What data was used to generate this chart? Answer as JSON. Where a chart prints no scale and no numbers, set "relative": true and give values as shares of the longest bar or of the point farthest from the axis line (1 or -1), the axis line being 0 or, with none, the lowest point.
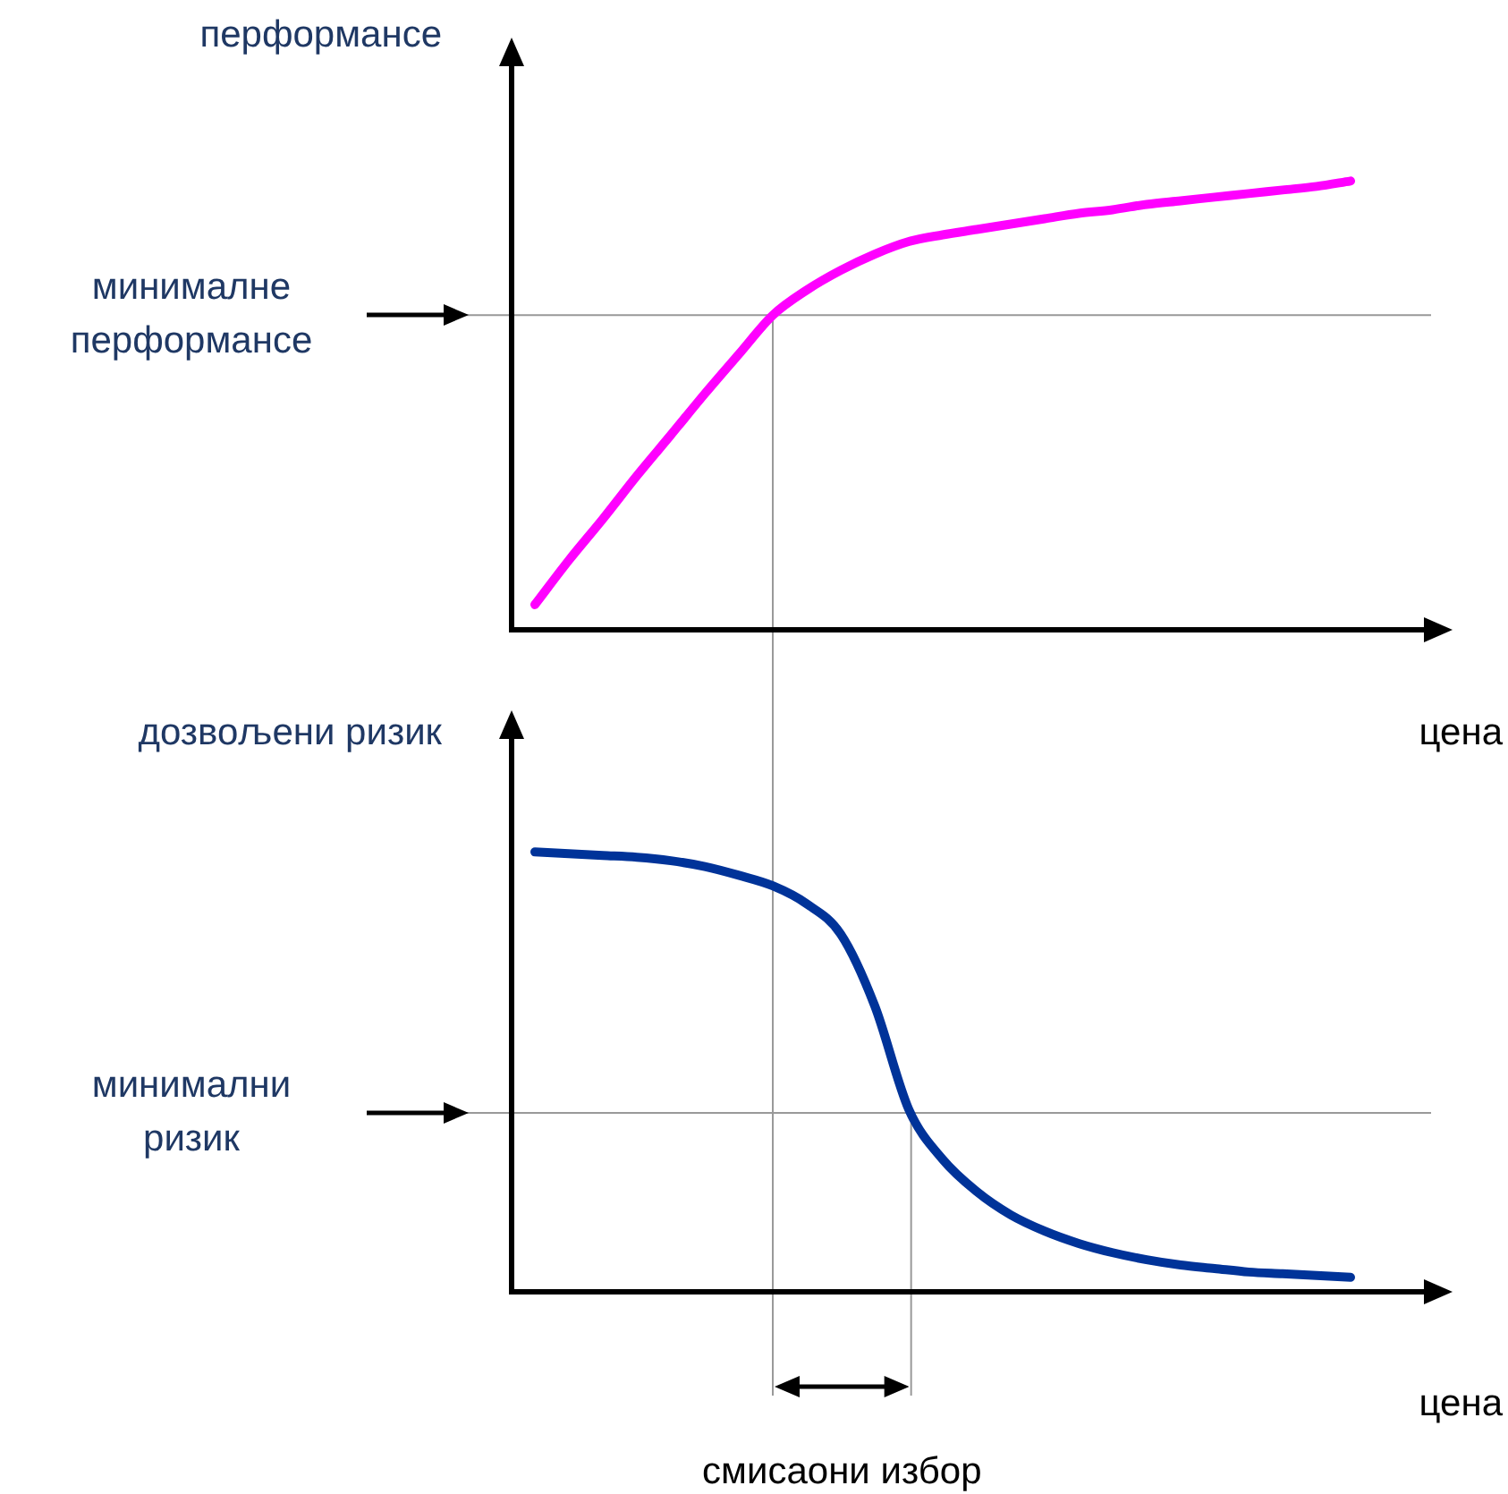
{
  "chart_data": [
    {
      "type": "line",
      "relative": true,
      "ylabel": "перформансе",
      "xlabel": "цена",
      "categories": [
        null,
        null,
        null,
        null,
        null,
        null,
        null,
        null,
        null,
        null,
        null,
        null,
        null,
        null,
        null,
        null,
        null,
        null,
        null,
        null,
        null,
        null,
        null,
        null,
        null
      ],
      "series": [
        {
          "color": "#ff00ff",
          "values": [
            0.056,
            0.155,
            0.247,
            0.343,
            0.434,
            0.526,
            0.614,
            0.701,
            0.757,
            0.801,
            0.837,
            0.865,
            0.88,
            0.892,
            0.904,
            0.916,
            0.928,
            0.936,
            0.948,
            0.956,
            0.964,
            0.972,
            0.98,
            0.988,
            1
          ]
        }
      ],
      "ref_lines": [
        {
          "axis": "y",
          "value": 0.701,
          "label": "минималне перформансе",
          "color": "#999999"
        }
      ]
    },
    {
      "type": "line",
      "relative": true,
      "ylabel": "дозвољени ризик",
      "xlabel": "цена",
      "categories": [
        null,
        null,
        null,
        null,
        null,
        null,
        null,
        null,
        null,
        null,
        null,
        null,
        null,
        null,
        null,
        null,
        null,
        null,
        null,
        null,
        null,
        null,
        null,
        null,
        null
      ],
      "series": [
        {
          "color": "#003399",
          "values": [
            1,
            0.996,
            0.992,
            0.988,
            0.98,
            0.967,
            0.947,
            0.923,
            0.882,
            0.813,
            0.65,
            0.415,
            0.301,
            0.228,
            0.175,
            0.138,
            0.11,
            0.089,
            0.073,
            0.061,
            0.053,
            0.045,
            0.041,
            0.037,
            0.033
          ]
        }
      ],
      "ref_lines": [
        {
          "axis": "y",
          "value": 0.407,
          "label": "минимални ризик",
          "color": "#999999"
        }
      ],
      "annotations": [
        "смисаони избор"
      ]
    }
  ]
}
